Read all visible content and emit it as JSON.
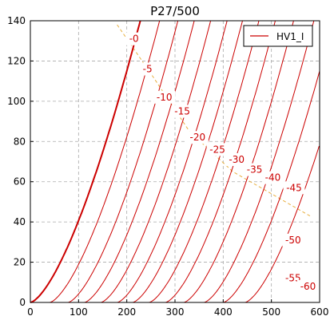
{
  "chart_data": {
    "type": "line",
    "title": "P27/500",
    "xlabel": "",
    "ylabel": "",
    "xlim": [
      0,
      600
    ],
    "ylim": [
      0,
      140
    ],
    "x_ticks": [
      0,
      100,
      200,
      300,
      400,
      500,
      600
    ],
    "y_ticks": [
      0,
      20,
      40,
      60,
      80,
      100,
      120,
      140
    ],
    "grid": true,
    "legend": {
      "position": "top-right",
      "entries": [
        {
          "label": "HV1_I",
          "color": "#cc0000"
        }
      ]
    },
    "curve_color": "#cc0000",
    "load_line_color": "#e8b040",
    "series": [
      {
        "label": "-0",
        "offset": 0,
        "bold": true
      },
      {
        "label": "-5",
        "offset": 40
      },
      {
        "label": "-10",
        "offset": 78
      },
      {
        "label": "-15",
        "offset": 112
      },
      {
        "label": "-20",
        "offset": 146
      },
      {
        "label": "-25",
        "offset": 180
      },
      {
        "label": "-30",
        "offset": 212
      },
      {
        "label": "-35",
        "offset": 246
      },
      {
        "label": "-40",
        "offset": 280
      },
      {
        "label": "-45",
        "offset": 318
      },
      {
        "label": "-50",
        "offset": 360
      },
      {
        "label": "-55",
        "offset": 400
      },
      {
        "label": "-60",
        "offset": 445
      }
    ],
    "series_labels": [
      {
        "text": "-0",
        "x": 215,
        "y": 131
      },
      {
        "text": "-5",
        "x": 243,
        "y": 116
      },
      {
        "text": "-10",
        "x": 278,
        "y": 102
      },
      {
        "text": "-15",
        "x": 315,
        "y": 95
      },
      {
        "text": "-20",
        "x": 347,
        "y": 82
      },
      {
        "text": "-25",
        "x": 388,
        "y": 76
      },
      {
        "text": "-30",
        "x": 428,
        "y": 71
      },
      {
        "text": "-35",
        "x": 465,
        "y": 66
      },
      {
        "text": "-40",
        "x": 503,
        "y": 62
      },
      {
        "text": "-45",
        "x": 547,
        "y": 57
      },
      {
        "text": "-50",
        "x": 545,
        "y": 31
      },
      {
        "text": "-55",
        "x": 545,
        "y": 12
      },
      {
        "text": "-60",
        "x": 576,
        "y": 8
      }
    ],
    "load_line": [
      [
        180,
        138
      ],
      [
        255,
        112
      ],
      [
        330,
        85
      ],
      [
        420,
        65
      ],
      [
        500,
        54
      ],
      [
        580,
        43
      ]
    ]
  }
}
